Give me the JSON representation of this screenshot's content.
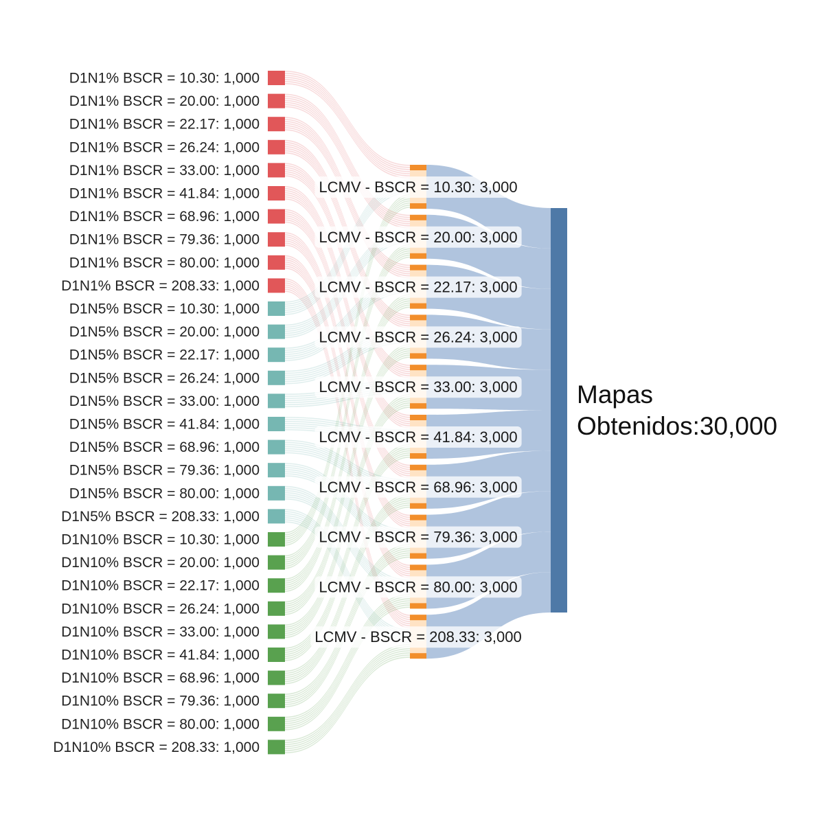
{
  "colors": {
    "group_d1n1": "#e15759",
    "group_d1n5": "#76b7b2",
    "group_d1n10": "#59a14f",
    "lcmv_node": "#f28e2b",
    "lcmv_band": "#ffe3c4",
    "target_node": "#4e79a7",
    "target_link": "#b0c4de"
  },
  "chart_data": {
    "type": "sankey",
    "sources": [
      {
        "group": "D1N1%",
        "label": "D1N1% BSCR = 10.30: 1,000",
        "bscr": "10.30",
        "value": 1000
      },
      {
        "group": "D1N1%",
        "label": "D1N1% BSCR = 20.00: 1,000",
        "bscr": "20.00",
        "value": 1000
      },
      {
        "group": "D1N1%",
        "label": "D1N1% BSCR = 22.17: 1,000",
        "bscr": "22.17",
        "value": 1000
      },
      {
        "group": "D1N1%",
        "label": "D1N1% BSCR = 26.24: 1,000",
        "bscr": "26.24",
        "value": 1000
      },
      {
        "group": "D1N1%",
        "label": "D1N1% BSCR = 33.00: 1,000",
        "bscr": "33.00",
        "value": 1000
      },
      {
        "group": "D1N1%",
        "label": "D1N1% BSCR = 41.84: 1,000",
        "bscr": "41.84",
        "value": 1000
      },
      {
        "group": "D1N1%",
        "label": "D1N1% BSCR = 68.96: 1,000",
        "bscr": "68.96",
        "value": 1000
      },
      {
        "group": "D1N1%",
        "label": "D1N1% BSCR = 79.36: 1,000",
        "bscr": "79.36",
        "value": 1000
      },
      {
        "group": "D1N1%",
        "label": "D1N1% BSCR = 80.00: 1,000",
        "bscr": "80.00",
        "value": 1000
      },
      {
        "group": "D1N1%",
        "label": "D1N1% BSCR = 208.33: 1,000",
        "bscr": "208.33",
        "value": 1000
      },
      {
        "group": "D1N5%",
        "label": "D1N5% BSCR = 10.30: 1,000",
        "bscr": "10.30",
        "value": 1000
      },
      {
        "group": "D1N5%",
        "label": "D1N5% BSCR = 20.00: 1,000",
        "bscr": "20.00",
        "value": 1000
      },
      {
        "group": "D1N5%",
        "label": "D1N5% BSCR = 22.17: 1,000",
        "bscr": "22.17",
        "value": 1000
      },
      {
        "group": "D1N5%",
        "label": "D1N5% BSCR = 26.24: 1,000",
        "bscr": "26.24",
        "value": 1000
      },
      {
        "group": "D1N5%",
        "label": "D1N5% BSCR = 33.00: 1,000",
        "bscr": "33.00",
        "value": 1000
      },
      {
        "group": "D1N5%",
        "label": "D1N5% BSCR = 41.84: 1,000",
        "bscr": "41.84",
        "value": 1000
      },
      {
        "group": "D1N5%",
        "label": "D1N5% BSCR = 68.96: 1,000",
        "bscr": "68.96",
        "value": 1000
      },
      {
        "group": "D1N5%",
        "label": "D1N5% BSCR = 79.36: 1,000",
        "bscr": "79.36",
        "value": 1000
      },
      {
        "group": "D1N5%",
        "label": "D1N5% BSCR = 80.00: 1,000",
        "bscr": "80.00",
        "value": 1000
      },
      {
        "group": "D1N5%",
        "label": "D1N5% BSCR = 208.33: 1,000",
        "bscr": "208.33",
        "value": 1000
      },
      {
        "group": "D1N10%",
        "label": "D1N10% BSCR = 10.30: 1,000",
        "bscr": "10.30",
        "value": 1000
      },
      {
        "group": "D1N10%",
        "label": "D1N10% BSCR = 20.00: 1,000",
        "bscr": "20.00",
        "value": 1000
      },
      {
        "group": "D1N10%",
        "label": "D1N10% BSCR = 22.17: 1,000",
        "bscr": "22.17",
        "value": 1000
      },
      {
        "group": "D1N10%",
        "label": "D1N10% BSCR = 26.24: 1,000",
        "bscr": "26.24",
        "value": 1000
      },
      {
        "group": "D1N10%",
        "label": "D1N10% BSCR = 33.00: 1,000",
        "bscr": "33.00",
        "value": 1000
      },
      {
        "group": "D1N10%",
        "label": "D1N10% BSCR = 41.84: 1,000",
        "bscr": "41.84",
        "value": 1000
      },
      {
        "group": "D1N10%",
        "label": "D1N10% BSCR = 68.96: 1,000",
        "bscr": "68.96",
        "value": 1000
      },
      {
        "group": "D1N10%",
        "label": "D1N10% BSCR = 79.36: 1,000",
        "bscr": "79.36",
        "value": 1000
      },
      {
        "group": "D1N10%",
        "label": "D1N10% BSCR = 80.00: 1,000",
        "bscr": "80.00",
        "value": 1000
      },
      {
        "group": "D1N10%",
        "label": "D1N10% BSCR = 208.33: 1,000",
        "bscr": "208.33",
        "value": 1000
      }
    ],
    "intermediates": [
      {
        "label": "LCMV - BSCR = 10.30: 3,000",
        "bscr": "10.30",
        "value": 3000
      },
      {
        "label": "LCMV - BSCR = 20.00: 3,000",
        "bscr": "20.00",
        "value": 3000
      },
      {
        "label": "LCMV - BSCR = 22.17: 3,000",
        "bscr": "22.17",
        "value": 3000
      },
      {
        "label": "LCMV - BSCR = 26.24: 3,000",
        "bscr": "26.24",
        "value": 3000
      },
      {
        "label": "LCMV - BSCR = 33.00: 3,000",
        "bscr": "33.00",
        "value": 3000
      },
      {
        "label": "LCMV - BSCR = 41.84: 3,000",
        "bscr": "41.84",
        "value": 3000
      },
      {
        "label": "LCMV - BSCR = 68.96: 3,000",
        "bscr": "68.96",
        "value": 3000
      },
      {
        "label": "LCMV - BSCR = 79.36: 3,000",
        "bscr": "79.36",
        "value": 3000
      },
      {
        "label": "LCMV - BSCR = 80.00: 3,000",
        "bscr": "80.00",
        "value": 3000
      },
      {
        "label": "LCMV - BSCR = 208.33: 3,000",
        "bscr": "208.33",
        "value": 3000
      }
    ],
    "target": {
      "label_line1": "Mapas",
      "label_line2": "Obtenidos:30,000",
      "value": 30000
    }
  }
}
